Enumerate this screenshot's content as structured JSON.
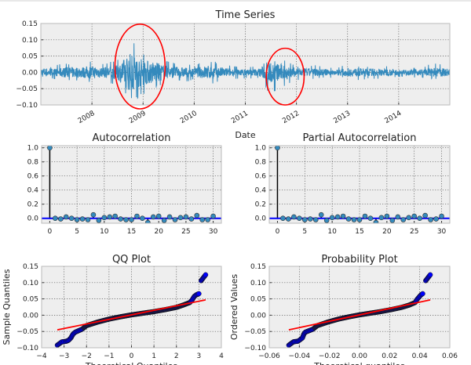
{
  "chart_data": [
    {
      "type": "line",
      "title": "Time Series",
      "xlabel": "Date",
      "ylabel": "",
      "xlim": [
        2007.0,
        2015.0
      ],
      "ylim": [
        -0.1,
        0.15
      ],
      "xticks": [
        2008,
        2009,
        2010,
        2011,
        2012,
        2013,
        2014
      ],
      "xtick_labels": [
        "2008",
        "2009",
        "2010",
        "2011",
        "2012",
        "2013",
        "2014"
      ],
      "yticks": [
        0.15,
        0.1,
        0.05,
        0.0,
        -0.05,
        -0.1
      ],
      "ytick_labels": [
        "0.15",
        "0.10",
        "0.05",
        "0.00",
        "−0.05",
        "−0.10"
      ],
      "grid": true,
      "line_color": "#348abd",
      "envelope_note_fields": [
        "date",
        "max",
        "min"
      ],
      "envelope": [
        [
          2007.0,
          0.015,
          -0.04
        ],
        [
          2007.25,
          0.02,
          -0.02
        ],
        [
          2007.5,
          0.03,
          -0.03
        ],
        [
          2007.75,
          0.03,
          -0.03
        ],
        [
          2008.0,
          0.04,
          -0.03
        ],
        [
          2008.25,
          0.03,
          -0.03
        ],
        [
          2008.5,
          0.04,
          -0.04
        ],
        [
          2008.75,
          0.125,
          -0.095
        ],
        [
          2009.0,
          0.065,
          -0.08
        ],
        [
          2009.25,
          0.065,
          -0.05
        ],
        [
          2009.5,
          0.035,
          -0.03
        ],
        [
          2009.75,
          0.03,
          -0.03
        ],
        [
          2010.0,
          0.02,
          -0.025
        ],
        [
          2010.25,
          0.04,
          -0.04
        ],
        [
          2010.5,
          0.03,
          -0.03
        ],
        [
          2010.75,
          0.02,
          -0.02
        ],
        [
          2011.0,
          0.015,
          -0.02
        ],
        [
          2011.25,
          0.02,
          -0.02
        ],
        [
          2011.5,
          0.04,
          -0.075
        ],
        [
          2011.75,
          0.045,
          -0.045
        ],
        [
          2012.0,
          0.02,
          -0.025
        ],
        [
          2012.25,
          0.025,
          -0.02
        ],
        [
          2012.5,
          0.02,
          -0.02
        ],
        [
          2012.75,
          0.015,
          -0.015
        ],
        [
          2013.0,
          0.025,
          -0.02
        ],
        [
          2013.25,
          0.02,
          -0.025
        ],
        [
          2013.5,
          0.02,
          -0.02
        ],
        [
          2013.75,
          0.02,
          -0.02
        ],
        [
          2014.0,
          0.015,
          -0.015
        ],
        [
          2014.25,
          0.015,
          -0.015
        ],
        [
          2014.5,
          0.02,
          -0.02
        ],
        [
          2014.75,
          0.03,
          -0.02
        ],
        [
          2015.0,
          0.025,
          -0.015
        ]
      ],
      "annotations": [
        {
          "shape": "ellipse",
          "color": "#ff0000",
          "center": [
            2008.94,
            0.018
          ],
          "radius": [
            0.49,
            0.13
          ]
        },
        {
          "shape": "ellipse",
          "color": "#ff0000",
          "center": [
            2011.78,
            -0.013
          ],
          "radius": [
            0.37,
            0.087
          ]
        }
      ]
    },
    {
      "type": "stem",
      "title": "Autocorrelation",
      "xlabel": "",
      "ylabel": "",
      "xlim": [
        -1.5,
        31.5
      ],
      "ylim": [
        -0.07,
        1.03
      ],
      "xticks": [
        0,
        5,
        10,
        15,
        20,
        25,
        30
      ],
      "xtick_labels": [
        "0",
        "5",
        "10",
        "15",
        "20",
        "25",
        "30"
      ],
      "yticks": [
        1.0,
        0.8,
        0.6,
        0.4,
        0.2,
        0.0
      ],
      "ytick_labels": [
        "1.0",
        "0.8",
        "0.6",
        "0.4",
        "0.2",
        "0.0"
      ],
      "grid": true,
      "marker_color": "#348abd",
      "zero_line_color": "#0000ff",
      "lags": [
        0,
        1,
        2,
        3,
        4,
        5,
        6,
        7,
        8,
        9,
        10,
        11,
        12,
        13,
        14,
        15,
        16,
        17,
        18,
        19,
        20,
        21,
        22,
        23,
        24,
        25,
        26,
        27,
        28,
        29,
        30
      ],
      "values": [
        1.0,
        0.0,
        -0.01,
        0.02,
        0.0,
        -0.02,
        -0.01,
        -0.02,
        0.05,
        -0.03,
        0.01,
        0.02,
        0.03,
        -0.01,
        -0.02,
        -0.02,
        0.03,
        0.0,
        -0.06,
        0.02,
        0.03,
        -0.03,
        0.02,
        -0.02,
        0.01,
        0.02,
        -0.01,
        0.04,
        -0.02,
        -0.02,
        0.03
      ]
    },
    {
      "type": "stem",
      "title": "Partial Autocorrelation",
      "xlabel": "",
      "ylabel": "",
      "xlim": [
        -1.5,
        31.5
      ],
      "ylim": [
        -0.07,
        1.03
      ],
      "xticks": [
        0,
        5,
        10,
        15,
        20,
        25,
        30
      ],
      "xtick_labels": [
        "0",
        "5",
        "10",
        "15",
        "20",
        "25",
        "30"
      ],
      "yticks": [
        1.0,
        0.8,
        0.6,
        0.4,
        0.2,
        0.0
      ],
      "ytick_labels": [
        "1.0",
        "0.8",
        "0.6",
        "0.4",
        "0.2",
        "0.0"
      ],
      "grid": true,
      "marker_color": "#348abd",
      "zero_line_color": "#0000ff",
      "lags": [
        0,
        1,
        2,
        3,
        4,
        5,
        6,
        7,
        8,
        9,
        10,
        11,
        12,
        13,
        14,
        15,
        16,
        17,
        18,
        19,
        20,
        21,
        22,
        23,
        24,
        25,
        26,
        27,
        28,
        29,
        30
      ],
      "values": [
        1.0,
        0.0,
        -0.01,
        0.02,
        0.0,
        -0.02,
        -0.01,
        -0.02,
        0.05,
        -0.03,
        0.01,
        0.02,
        0.03,
        -0.01,
        -0.02,
        -0.02,
        0.03,
        0.0,
        -0.06,
        0.01,
        0.03,
        -0.03,
        0.02,
        -0.02,
        0.01,
        0.03,
        0.0,
        0.04,
        -0.02,
        -0.01,
        0.03
      ]
    },
    {
      "type": "scatter",
      "title": "QQ Plot",
      "xlabel": "Theoretical Quantiles",
      "ylabel": "Sample Quantiles",
      "xlim": [
        -4,
        4
      ],
      "ylim": [
        -0.1,
        0.15
      ],
      "xticks": [
        -4,
        -3,
        -2,
        -1,
        0,
        1,
        2,
        3,
        4
      ],
      "xtick_labels": [
        "−4",
        "−3",
        "−2",
        "−1",
        "0",
        "1",
        "2",
        "3",
        "4"
      ],
      "yticks": [
        0.15,
        0.1,
        0.05,
        0.0,
        -0.05,
        -0.1
      ],
      "ytick_labels": [
        "0.15",
        "0.10",
        "0.05",
        "0.00",
        "−0.05",
        "−0.10"
      ],
      "grid": true,
      "point_color": "#0000ff",
      "fit_color": "#ff0000",
      "fit_line": [
        [
          -3.3,
          -0.045
        ],
        [
          3.3,
          0.047
        ]
      ],
      "points": [
        [
          -3.3,
          -0.092
        ],
        [
          -3.1,
          -0.082
        ],
        [
          -3.0,
          -0.081
        ],
        [
          -2.9,
          -0.08
        ],
        [
          -2.8,
          -0.077
        ],
        [
          -2.7,
          -0.07
        ],
        [
          -2.6,
          -0.058
        ],
        [
          -2.5,
          -0.052
        ],
        [
          -2.2,
          -0.043
        ],
        [
          -2.0,
          -0.032
        ],
        [
          -1.5,
          -0.021
        ],
        [
          -1.0,
          -0.012
        ],
        [
          -0.5,
          -0.005
        ],
        [
          0.0,
          0.001
        ],
        [
          0.5,
          0.006
        ],
        [
          1.0,
          0.011
        ],
        [
          1.5,
          0.017
        ],
        [
          2.0,
          0.024
        ],
        [
          2.3,
          0.031
        ],
        [
          2.6,
          0.039
        ],
        [
          2.7,
          0.047
        ],
        [
          2.8,
          0.058
        ],
        [
          2.9,
          0.063
        ],
        [
          3.0,
          0.066
        ],
        [
          3.1,
          0.106
        ],
        [
          3.3,
          0.124
        ]
      ]
    },
    {
      "type": "scatter",
      "title": "Probability Plot",
      "xlabel": "Theoretical quantiles",
      "ylabel": "Ordered Values",
      "xlim": [
        -0.06,
        0.06
      ],
      "ylim": [
        -0.1,
        0.15
      ],
      "xticks": [
        -0.06,
        -0.04,
        -0.02,
        0.0,
        0.02,
        0.04,
        0.06
      ],
      "xtick_labels": [
        "−0.06",
        "−0.04",
        "−0.02",
        "0.00",
        "0.02",
        "0.04",
        "0.06"
      ],
      "yticks": [
        0.15,
        0.1,
        0.05,
        0.0,
        -0.05,
        -0.1
      ],
      "ytick_labels": [
        "0.15",
        "0.10",
        "0.05",
        "0.00",
        "−0.05",
        "−0.10"
      ],
      "grid": true,
      "point_color": "#0000ff",
      "fit_color": "#ff0000",
      "fit_line": [
        [
          -0.047,
          -0.045
        ],
        [
          0.047,
          0.047
        ]
      ],
      "points": [
        [
          -0.047,
          -0.092
        ],
        [
          -0.044,
          -0.082
        ],
        [
          -0.043,
          -0.081
        ],
        [
          -0.041,
          -0.08
        ],
        [
          -0.04,
          -0.077
        ],
        [
          -0.038,
          -0.07
        ],
        [
          -0.037,
          -0.058
        ],
        [
          -0.036,
          -0.052
        ],
        [
          -0.031,
          -0.043
        ],
        [
          -0.028,
          -0.032
        ],
        [
          -0.021,
          -0.021
        ],
        [
          -0.014,
          -0.012
        ],
        [
          -0.007,
          -0.005
        ],
        [
          0.0,
          0.001
        ],
        [
          0.007,
          0.006
        ],
        [
          0.014,
          0.011
        ],
        [
          0.021,
          0.017
        ],
        [
          0.028,
          0.024
        ],
        [
          0.033,
          0.031
        ],
        [
          0.037,
          0.039
        ],
        [
          0.038,
          0.047
        ],
        [
          0.04,
          0.058
        ],
        [
          0.041,
          0.063
        ],
        [
          0.042,
          0.066
        ],
        [
          0.044,
          0.106
        ],
        [
          0.047,
          0.124
        ]
      ]
    }
  ]
}
